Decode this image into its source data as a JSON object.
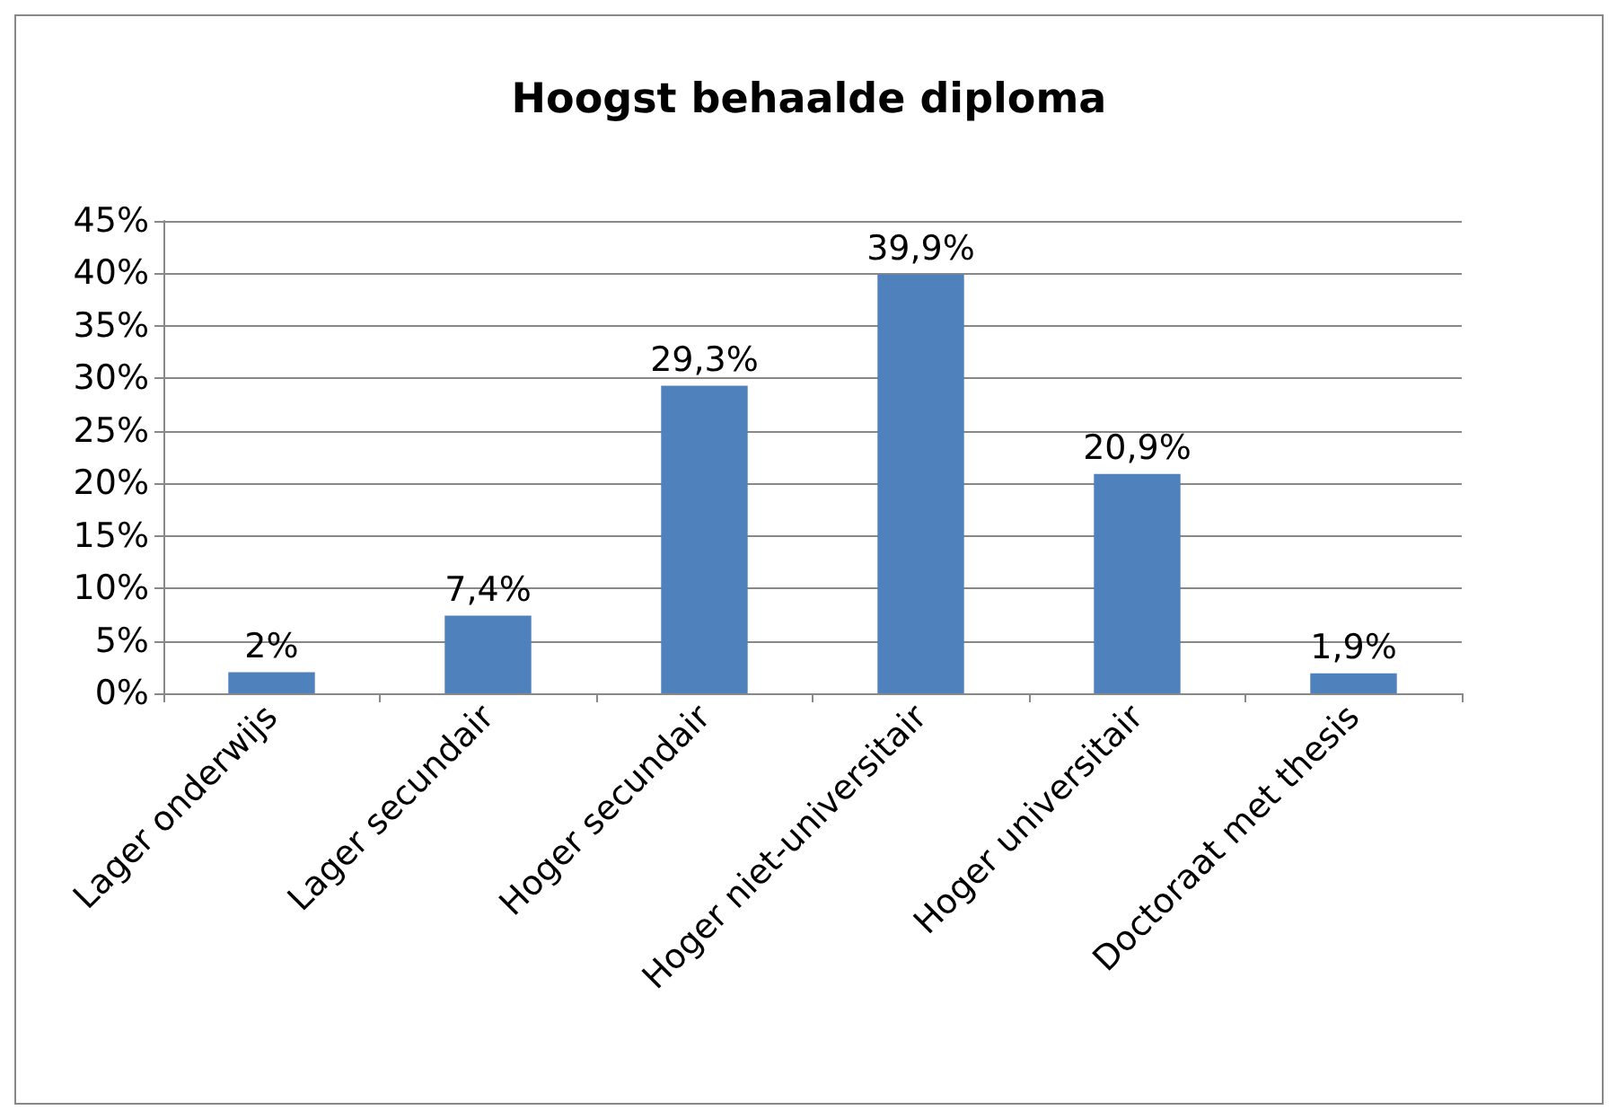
{
  "chart_data": {
    "type": "bar",
    "title": "Hoogst behaalde diploma",
    "categories": [
      "Lager onderwijs",
      "Lager secundair",
      "Hoger secundair",
      "Hoger niet-universitair",
      "Hoger universitair",
      "Doctoraat met thesis"
    ],
    "values": [
      2,
      7.4,
      29.3,
      39.9,
      20.9,
      1.9
    ],
    "value_labels": [
      "2%",
      "7,4%",
      "29,3%",
      "39,9%",
      "20,9%",
      "1,9%"
    ],
    "color": "#4f81bd",
    "ylim": [
      0,
      45
    ],
    "yticks": [
      {
        "value": 0,
        "label": "0%"
      },
      {
        "value": 5,
        "label": "5%"
      },
      {
        "value": 10,
        "label": "10%"
      },
      {
        "value": 15,
        "label": "15%"
      },
      {
        "value": 20,
        "label": "20%"
      },
      {
        "value": 25,
        "label": "25%"
      },
      {
        "value": 30,
        "label": "30%"
      },
      {
        "value": 35,
        "label": "35%"
      },
      {
        "value": 40,
        "label": "40%"
      },
      {
        "value": 45,
        "label": "45%"
      }
    ],
    "grid": "y"
  }
}
